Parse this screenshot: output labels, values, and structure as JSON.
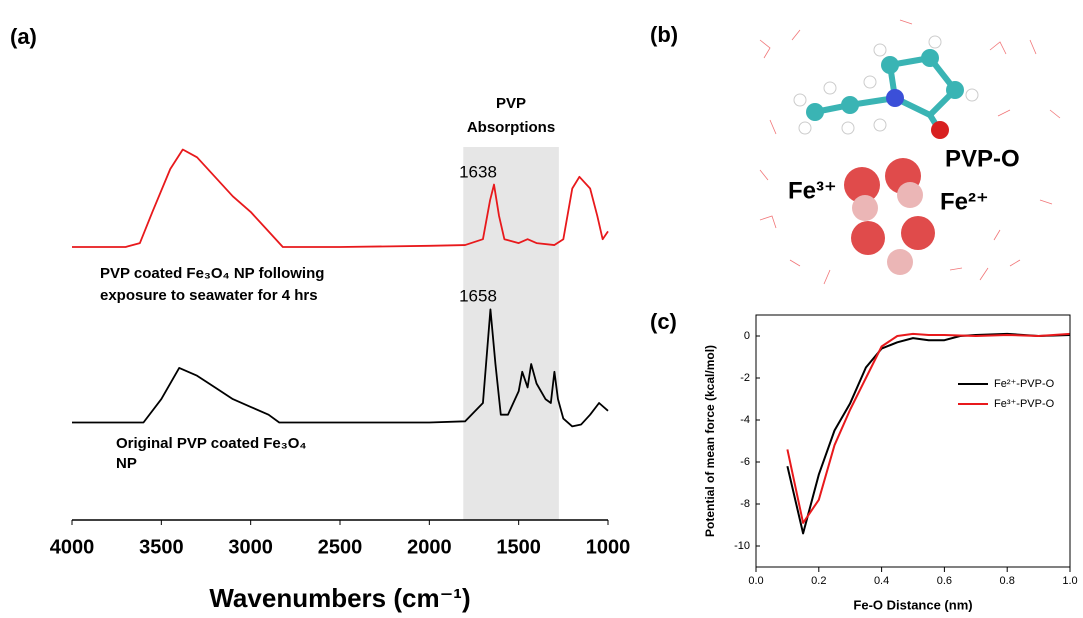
{
  "panel_labels": [
    "(a)",
    "(b)",
    "(c)"
  ],
  "molecule": {
    "labels": [
      "PVP-O",
      "Fe³⁺",
      "Fe²⁺"
    ]
  },
  "chart_data": [
    {
      "type": "line",
      "xlabel": "Wavenumbers (cm⁻¹)",
      "xlim": [
        4000,
        1000
      ],
      "xticks": [
        4000,
        3500,
        3000,
        2500,
        2000,
        1500,
        1000
      ],
      "ylim": [
        0,
        100
      ],
      "shade": [
        1810,
        1275
      ],
      "annotations": [
        "1638",
        "1658",
        "PVP",
        "Absorptions",
        "PVP coated Fe₃O₄ NP following",
        "exposure to seawater for 4 hrs",
        "Original PVP coated Fe₃O₄",
        "NP"
      ],
      "series": [
        {
          "color": "#e8191c",
          "x": [
            4000,
            3700,
            3620,
            3550,
            3450,
            3380,
            3300,
            3200,
            3100,
            3000,
            2900,
            2820,
            2500,
            2000,
            1800,
            1700,
            1660,
            1638,
            1610,
            1580,
            1500,
            1450,
            1400,
            1300,
            1250,
            1200,
            1160,
            1100,
            1060,
            1030,
            1000
          ],
          "values": [
            70,
            70,
            71,
            79,
            90,
            95,
            93,
            88,
            83,
            79,
            74,
            70,
            70,
            70.3,
            70.5,
            72,
            82,
            86,
            78,
            72,
            71,
            72,
            71,
            70.5,
            72,
            85,
            88,
            85,
            78,
            72,
            74
          ]
        },
        {
          "color": "#000000",
          "x": [
            4000,
            3600,
            3500,
            3400,
            3300,
            3200,
            3100,
            3000,
            2900,
            2840,
            2000,
            1800,
            1700,
            1658,
            1630,
            1600,
            1560,
            1500,
            1480,
            1450,
            1430,
            1400,
            1350,
            1320,
            1300,
            1280,
            1250,
            1200,
            1150,
            1100,
            1050,
            1000
          ],
          "values": [
            25,
            25,
            31,
            39,
            37,
            34,
            31,
            29,
            27,
            25,
            25,
            25.3,
            30,
            54,
            40,
            27,
            27,
            33,
            38,
            34,
            40,
            35,
            31,
            30,
            38,
            31,
            26,
            24,
            24.5,
            27,
            30,
            28
          ]
        }
      ]
    },
    {
      "type": "line",
      "xlabel": "Fe-O Distance (nm)",
      "ylabel": "Potential of mean force (kcal/mol)",
      "xlim": [
        0,
        1
      ],
      "xticks": [
        {
          "value": 0,
          "label": "0.0"
        },
        0.2,
        0.4,
        0.6,
        0.8,
        {
          "value": 1,
          "label": "1.0"
        }
      ],
      "ylim": [
        -11,
        1
      ],
      "yticks": [
        0,
        -2,
        -4,
        -6,
        -8,
        -10
      ],
      "legend": "upper right",
      "series": [
        {
          "name": "Fe²⁺-PVP-O",
          "color": "#000000",
          "x": [
            0.1,
            0.15,
            0.2,
            0.25,
            0.3,
            0.35,
            0.4,
            0.45,
            0.5,
            0.55,
            0.6,
            0.65,
            0.7,
            0.8,
            0.9,
            1.0
          ],
          "values": [
            -6.2,
            -9.4,
            -6.6,
            -4.5,
            -3.2,
            -1.5,
            -0.6,
            -0.3,
            -0.1,
            -0.2,
            -0.2,
            0,
            0.05,
            0.1,
            0,
            0.05
          ]
        },
        {
          "name": "Fe³⁺-PVP-O",
          "color": "#e8191c",
          "x": [
            0.1,
            0.15,
            0.2,
            0.25,
            0.3,
            0.35,
            0.4,
            0.45,
            0.5,
            0.55,
            0.6,
            0.7,
            0.8,
            0.9,
            1.0
          ],
          "values": [
            -5.4,
            -8.9,
            -7.8,
            -5.2,
            -3.5,
            -2,
            -0.5,
            0,
            0.1,
            0.05,
            0.05,
            0,
            0.05,
            0,
            0.1
          ]
        }
      ]
    }
  ]
}
